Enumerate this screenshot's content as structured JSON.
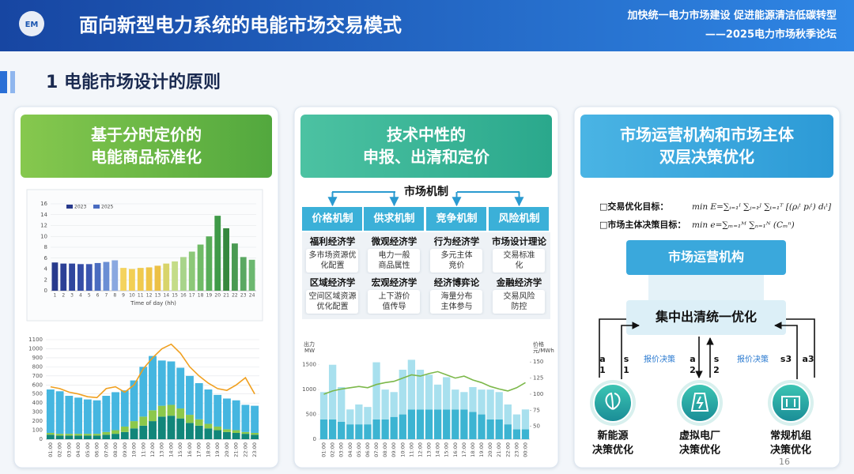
{
  "header": {
    "logo": "EM",
    "title": "面向新型电力系统的电能市场交易模式",
    "slogan": "加快统一电力市场建设 促进能源清洁低碳转型",
    "forum": "——2025电力市场秋季论坛"
  },
  "section": "1 电能市场设计的原则",
  "panels": [
    {
      "heading": [
        "基于分时定价的",
        "电能商品标准化"
      ]
    },
    {
      "heading": [
        "技术中性的",
        "申报、出清和定价"
      ],
      "root": "市场机制",
      "mechanisms": [
        "价格机制",
        "供求机制",
        "竞争机制",
        "风险机制"
      ],
      "cells": [
        [
          {
            "title": "福利经济学",
            "lines": [
              "多市场资源优",
              "化配置"
            ]
          },
          {
            "title": "微观经济学",
            "lines": [
              "电力一般",
              "商品属性"
            ]
          },
          {
            "title": "行为经济学",
            "lines": [
              "多元主体",
              "竞价"
            ]
          },
          {
            "title": "市场设计理论",
            "lines": [
              "交易标准",
              "化"
            ]
          }
        ],
        [
          {
            "title": "区域经济学",
            "lines": [
              "空间区域资源",
              "优化配置"
            ]
          },
          {
            "title": "宏观经济学",
            "lines": [
              "上下游价",
              "值传导"
            ]
          },
          {
            "title": "经济博弈论",
            "lines": [
              "海量分布",
              "主体参与"
            ]
          },
          {
            "title": "金融经济学",
            "lines": [
              "交易风险",
              "防控"
            ]
          }
        ]
      ]
    },
    {
      "heading": [
        "市场运营机构和市场主体",
        "双层决策优化"
      ],
      "goals": [
        {
          "label": "□交易优化目标：",
          "formula": "min E=∑ᵢ₌₁ᴵ ∑ⱼ₌₁ᴶ ∑ₜ₌₁ᵀ [(ρᵢᵗ pᵢᵗ) dₜᵗ]"
        },
        {
          "label": "□市场主体决策目标：",
          "formula": "min e=∑ₘ₌₁ᴹ ∑ₙ₌₁ᴺ (Cₘⁿ)"
        }
      ],
      "operator": "市场运营机构",
      "clearing": "集中出清统一优化",
      "links": [
        [
          "a",
          "1"
        ],
        [
          "s",
          "1"
        ],
        [
          "a",
          "2"
        ],
        [
          "s",
          "2"
        ],
        [
          "s3"
        ],
        [
          "a3"
        ]
      ],
      "bid": [
        "报价决策",
        "报价决策"
      ],
      "agents": [
        [
          "新能源",
          "决策优化"
        ],
        [
          "虚拟电厂",
          "决策优化"
        ],
        [
          "常规机组",
          "决策优化"
        ]
      ],
      "page": "16"
    }
  ],
  "chart_data": [
    {
      "type": "bar",
      "categories": [
        1,
        2,
        3,
        4,
        5,
        6,
        7,
        8,
        9,
        10,
        11,
        12,
        13,
        14,
        15,
        16,
        17,
        18,
        19,
        20,
        21,
        22,
        23,
        24
      ],
      "values": [
        5.2,
        5.0,
        5.0,
        4.9,
        4.9,
        5.1,
        5.3,
        5.6,
        4.2,
        4.0,
        4.2,
        4.3,
        4.6,
        5.0,
        5.4,
        6.2,
        7.2,
        8.5,
        10,
        13.8,
        11.5,
        8.7,
        6.2,
        5.7
      ],
      "colors": [
        "#283a8c",
        "#2c4096",
        "#30469e",
        "#344ca6",
        "#3a55b0",
        "#4a6cc0",
        "#6a8ed4",
        "#8aa8e0",
        "#f4d35e",
        "#f2cf55",
        "#f0ca4e",
        "#eec548",
        "#ecc045",
        "#d8d46a",
        "#c4dc88",
        "#a8d48a",
        "#8cc878",
        "#70bb66",
        "#58ad58",
        "#3f9a48",
        "#36883e",
        "#4a9a52",
        "#5aa862",
        "#6cb870"
      ],
      "legend": [
        "2023",
        "2025"
      ],
      "legend_colors": [
        "#283a8c",
        "#4a6cc0"
      ],
      "xlabel": "Time of day (hh)",
      "ylim": [
        0,
        16
      ],
      "yticks": [
        0,
        2,
        4,
        6,
        8,
        10,
        12,
        14,
        16
      ],
      "grid": true
    },
    {
      "type": "stacked_bar",
      "categories": [
        "01:00",
        "02:00",
        "03:00",
        "04:00",
        "05:00",
        "06:00",
        "07:00",
        "08:00",
        "09:00",
        "10:00",
        "11:00",
        "12:00",
        "13:00",
        "14:00",
        "15:00",
        "16:00",
        "17:00",
        "18:00",
        "19:00",
        "20:00",
        "21:00",
        "22:00",
        "23:00"
      ],
      "series": [
        {
          "color": "#11867a",
          "values": [
            50,
            40,
            40,
            40,
            40,
            40,
            50,
            60,
            80,
            120,
            150,
            200,
            250,
            260,
            230,
            180,
            150,
            120,
            100,
            80,
            70,
            60,
            50
          ]
        },
        {
          "color": "#8cc84b",
          "values": [
            20,
            20,
            20,
            20,
            20,
            20,
            30,
            40,
            60,
            80,
            100,
            120,
            120,
            120,
            110,
            90,
            70,
            50,
            40,
            30,
            30,
            20,
            20
          ]
        },
        {
          "color": "#45b6e0",
          "values": [
            480,
            470,
            420,
            400,
            380,
            370,
            400,
            420,
            400,
            450,
            550,
            600,
            500,
            480,
            450,
            430,
            400,
            380,
            350,
            340,
            330,
            300,
            300
          ]
        },
        {
          "kind": "line",
          "color": "#f0a020",
          "values": [
            580,
            560,
            520,
            500,
            470,
            460,
            560,
            580,
            520,
            600,
            780,
            900,
            1000,
            1050,
            950,
            800,
            700,
            620,
            560,
            540,
            600,
            680,
            500
          ]
        }
      ],
      "ylim": [
        0,
        1100
      ],
      "yticks": [
        0,
        100,
        200,
        300,
        400,
        500,
        600,
        700,
        800,
        900,
        1000,
        1100
      ],
      "grid": true
    },
    {
      "type": "stacked_bar",
      "categories": [
        "01:00",
        "02:00",
        "03:00",
        "04:00",
        "05:00",
        "06:00",
        "07:00",
        "08:00",
        "09:00",
        "10:00",
        "11:00",
        "12:00",
        "13:00",
        "14:00",
        "15:00",
        "16:00",
        "17:00",
        "18:00",
        "19:00",
        "20:00",
        "21:00",
        "22:00",
        "23:00",
        "00:00"
      ],
      "series": [
        {
          "color": "#3cb4d2",
          "values": [
            400,
            400,
            350,
            300,
            300,
            300,
            400,
            400,
            450,
            500,
            600,
            600,
            600,
            600,
            600,
            600,
            600,
            550,
            500,
            400,
            400,
            300,
            200,
            200
          ]
        },
        {
          "color": "#a8e0ee",
          "values": [
            550,
            1100,
            700,
            300,
            400,
            350,
            1150,
            600,
            500,
            900,
            1000,
            800,
            700,
            500,
            650,
            400,
            350,
            500,
            500,
            600,
            550,
            400,
            300,
            400
          ]
        },
        {
          "kind": "line",
          "axis": "y2",
          "color": "#7cb84a",
          "values": [
            100,
            105,
            108,
            110,
            112,
            110,
            115,
            118,
            120,
            125,
            130,
            128,
            132,
            135,
            130,
            125,
            128,
            122,
            118,
            112,
            108,
            105,
            110,
            118
          ]
        }
      ],
      "ylabel": [
        "出力",
        "MW"
      ],
      "y2label": [
        "价格",
        "元/MWh"
      ],
      "ylim": [
        0,
        1750
      ],
      "yticks": [
        0,
        500,
        1000,
        1500
      ],
      "y2lim": [
        30,
        165
      ],
      "y2ticks": [
        50,
        75,
        100,
        125,
        150
      ],
      "grid": false
    }
  ]
}
